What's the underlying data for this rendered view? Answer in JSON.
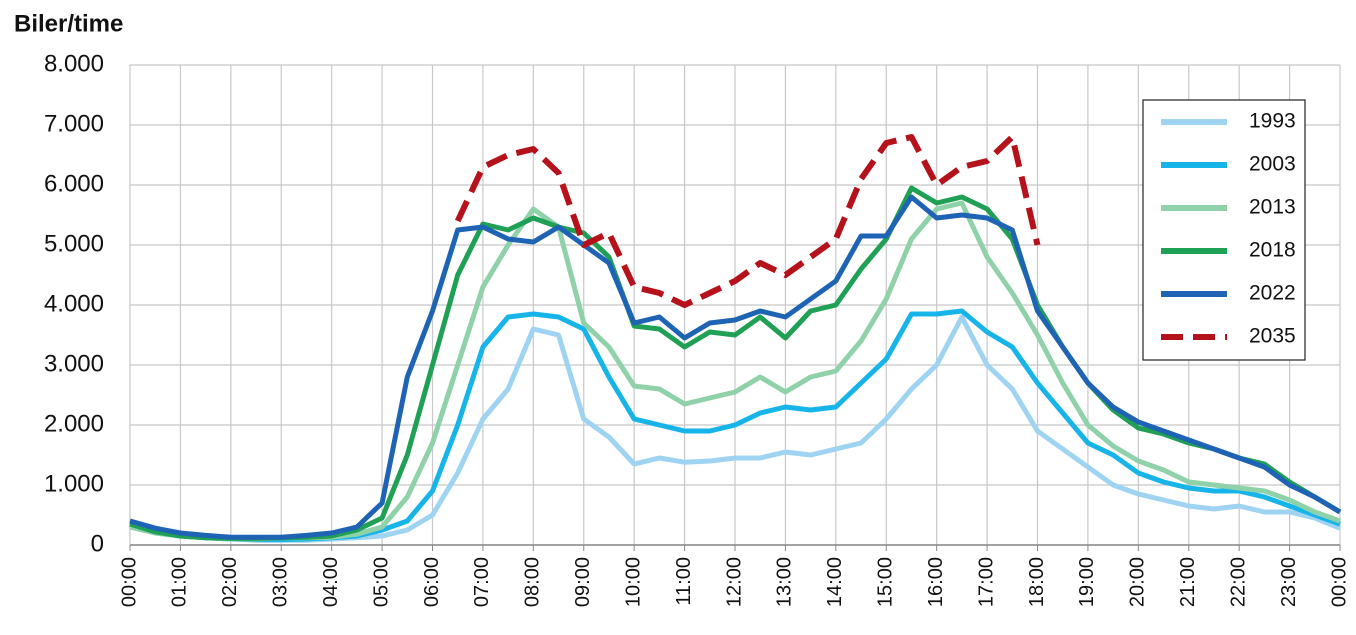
{
  "chart_data": {
    "type": "line",
    "ylabel": "Biler/time",
    "xlim": [
      0,
      24
    ],
    "xticks": [
      {
        "value": 0,
        "label": "00:00"
      },
      {
        "value": 1,
        "label": "01:00"
      },
      {
        "value": 2,
        "label": "02:00"
      },
      {
        "value": 3,
        "label": "03:00"
      },
      {
        "value": 4,
        "label": "04:00"
      },
      {
        "value": 5,
        "label": "05:00"
      },
      {
        "value": 6,
        "label": "06:00"
      },
      {
        "value": 7,
        "label": "07:00"
      },
      {
        "value": 8,
        "label": "08:00"
      },
      {
        "value": 9,
        "label": "09:00"
      },
      {
        "value": 10,
        "label": "10:00"
      },
      {
        "value": 11,
        "label": "11:00"
      },
      {
        "value": 12,
        "label": "12:00"
      },
      {
        "value": 13,
        "label": "13:00"
      },
      {
        "value": 14,
        "label": "14:00"
      },
      {
        "value": 15,
        "label": "15:00"
      },
      {
        "value": 16,
        "label": "16:00"
      },
      {
        "value": 17,
        "label": "17:00"
      },
      {
        "value": 18,
        "label": "18:00"
      },
      {
        "value": 19,
        "label": "19:00"
      },
      {
        "value": 20,
        "label": "20:00"
      },
      {
        "value": 21,
        "label": "21:00"
      },
      {
        "value": 22,
        "label": "22:00"
      },
      {
        "value": 23,
        "label": "23:00"
      },
      {
        "value": 24,
        "label": "00:00"
      }
    ],
    "ylim": [
      0,
      8000
    ],
    "yticks": [
      0,
      {
        "value": 1000,
        "label": "1.000"
      },
      {
        "value": 2000,
        "label": "2.000"
      },
      {
        "value": 3000,
        "label": "3.000"
      },
      {
        "value": 4000,
        "label": "4.000"
      },
      {
        "value": 5000,
        "label": "5.000"
      },
      {
        "value": 6000,
        "label": "6.000"
      },
      {
        "value": 7000,
        "label": "7.000"
      },
      {
        "value": 8000,
        "label": "8.000"
      }
    ],
    "grid": true,
    "legend": "upper right",
    "x": [
      0,
      0.5,
      1,
      1.5,
      2,
      2.5,
      3,
      3.5,
      4,
      4.5,
      5,
      5.5,
      6,
      6.5,
      7,
      7.5,
      8,
      8.5,
      9,
      9.5,
      10,
      10.5,
      11,
      11.5,
      12,
      12.5,
      13,
      13.5,
      14,
      14.5,
      15,
      15.5,
      16,
      16.5,
      17,
      17.5,
      18,
      18.5,
      19,
      19.5,
      20,
      20.5,
      21,
      21.5,
      22,
      22.5,
      23,
      23.5,
      24
    ],
    "series": [
      {
        "name": "1993",
        "color": "#9ed3f2",
        "style": "solid",
        "values": [
          300,
          200,
          150,
          120,
          100,
          80,
          80,
          80,
          100,
          120,
          150,
          250,
          500,
          1200,
          2100,
          2600,
          3600,
          3500,
          2100,
          1800,
          1350,
          1450,
          1380,
          1400,
          1450,
          1450,
          1550,
          1500,
          1600,
          1700,
          2100,
          2600,
          3000,
          3800,
          3000,
          2600,
          1900,
          1600,
          1300,
          1000,
          850,
          750,
          650,
          600,
          650,
          550,
          550,
          450,
          280
        ]
      },
      {
        "name": "2003",
        "color": "#16b4e8",
        "style": "solid",
        "values": [
          350,
          220,
          150,
          120,
          100,
          90,
          90,
          100,
          120,
          150,
          250,
          400,
          900,
          2000,
          3300,
          3800,
          3850,
          3800,
          3600,
          2800,
          2100,
          2000,
          1900,
          1900,
          2000,
          2200,
          2300,
          2250,
          2300,
          2700,
          3100,
          3850,
          3850,
          3900,
          3550,
          3300,
          2700,
          2200,
          1700,
          1500,
          1200,
          1050,
          950,
          900,
          900,
          800,
          650,
          500,
          350
        ]
      },
      {
        "name": "2013",
        "color": "#8fd1a8",
        "style": "solid",
        "values": [
          300,
          200,
          150,
          120,
          100,
          100,
          120,
          120,
          130,
          180,
          300,
          800,
          1700,
          3000,
          4300,
          5000,
          5600,
          5300,
          3700,
          3300,
          2650,
          2600,
          2350,
          2450,
          2550,
          2800,
          2550,
          2800,
          2900,
          3400,
          4100,
          5100,
          5600,
          5700,
          4800,
          4200,
          3500,
          2700,
          2000,
          1650,
          1400,
          1250,
          1050,
          1000,
          950,
          900,
          750,
          550,
          400
        ]
      },
      {
        "name": "2018",
        "color": "#1fa055",
        "style": "solid",
        "values": [
          350,
          220,
          150,
          120,
          110,
          110,
          120,
          130,
          150,
          250,
          450,
          1500,
          3000,
          4500,
          5350,
          5250,
          5450,
          5300,
          5200,
          4800,
          3650,
          3600,
          3300,
          3550,
          3500,
          3800,
          3450,
          3900,
          4000,
          4600,
          5100,
          5950,
          5700,
          5800,
          5600,
          5100,
          4000,
          3300,
          2700,
          2250,
          1950,
          1850,
          1700,
          1600,
          1450,
          1350,
          1050,
          800,
          550
        ]
      },
      {
        "name": "2022",
        "color": "#1e63b4",
        "style": "solid",
        "values": [
          400,
          280,
          200,
          160,
          130,
          130,
          130,
          160,
          200,
          300,
          700,
          2800,
          3900,
          5250,
          5300,
          5100,
          5050,
          5300,
          5000,
          4700,
          3700,
          3800,
          3450,
          3700,
          3750,
          3900,
          3800,
          4100,
          4400,
          5150,
          5150,
          5800,
          5450,
          5500,
          5450,
          5250,
          3900,
          3300,
          2700,
          2300,
          2050,
          1900,
          1750,
          1600,
          1450,
          1300,
          1000,
          800,
          550
        ]
      },
      {
        "name": "2035",
        "color": "#b5121b",
        "style": "dashed",
        "values": [
          null,
          null,
          null,
          null,
          null,
          null,
          null,
          null,
          null,
          null,
          null,
          null,
          null,
          5400,
          6300,
          6500,
          6600,
          6200,
          5000,
          5200,
          4300,
          4200,
          4000,
          4200,
          4400,
          4700,
          4500,
          4800,
          5100,
          6100,
          6700,
          6800,
          6000,
          6300,
          6400,
          6800,
          5000,
          null,
          null,
          null,
          null,
          null,
          null,
          null,
          null,
          null,
          null,
          null,
          null
        ]
      }
    ]
  }
}
